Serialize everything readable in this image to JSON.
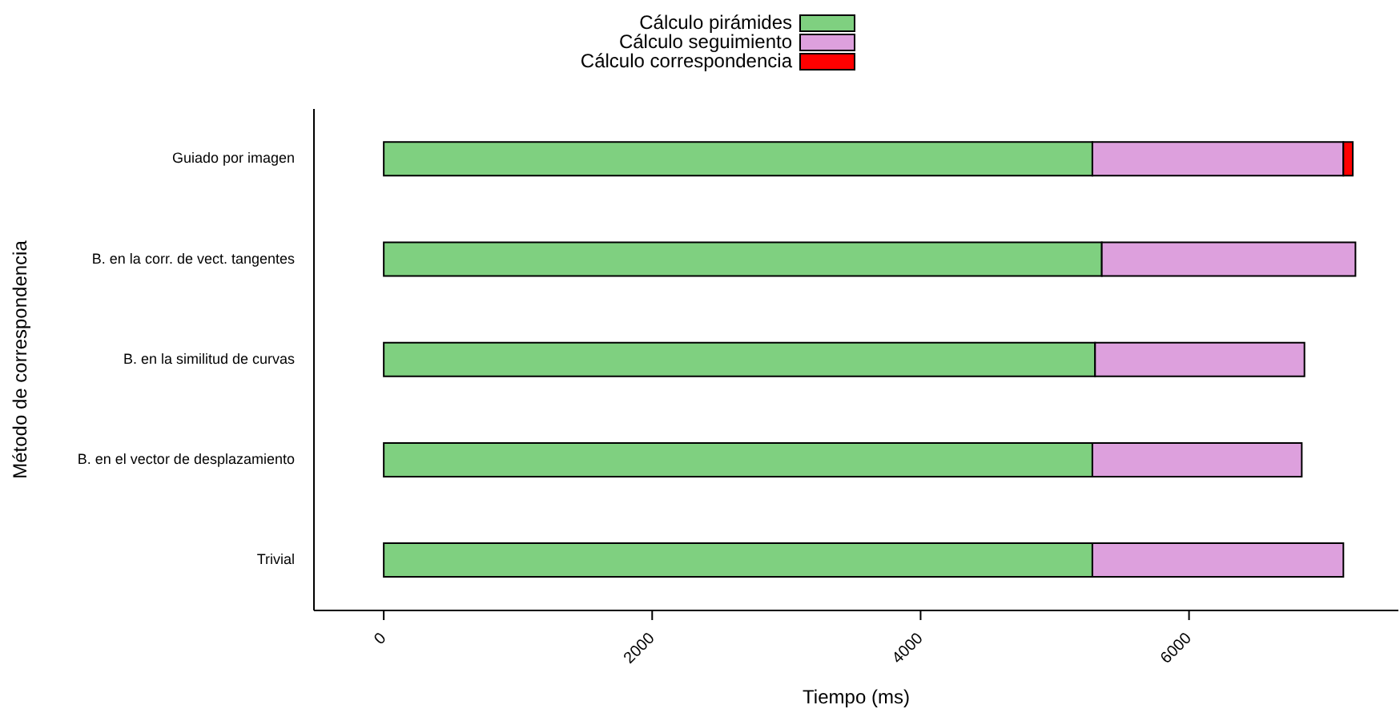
{
  "chart_data": {
    "type": "bar",
    "orientation": "horizontal",
    "stacked": true,
    "xlabel": "Tiempo (ms)",
    "ylabel": "Método de correspondencia",
    "categories": [
      "Guiado por imagen",
      "B. en la corr. de vect. tangentes",
      "B. en la similitud de curvas",
      "B. en el vector de desplazamiento",
      "Trivial"
    ],
    "series": [
      {
        "name": "Cálculo pirámides",
        "color": "#7fd080",
        "values": [
          5280,
          5350,
          5300,
          5280,
          5280
        ]
      },
      {
        "name": "Cálculo seguimiento",
        "color": "#dda0dd",
        "values": [
          1870,
          1890,
          1560,
          1560,
          1870
        ]
      },
      {
        "name": "Cálculo correspondencia",
        "color": "#ff0000",
        "values": [
          70,
          null,
          null,
          null,
          null
        ]
      }
    ],
    "xlim": [
      -520,
      7560
    ],
    "xticks": [
      0,
      2000,
      4000,
      6000
    ],
    "legend": "top",
    "grid": false
  }
}
